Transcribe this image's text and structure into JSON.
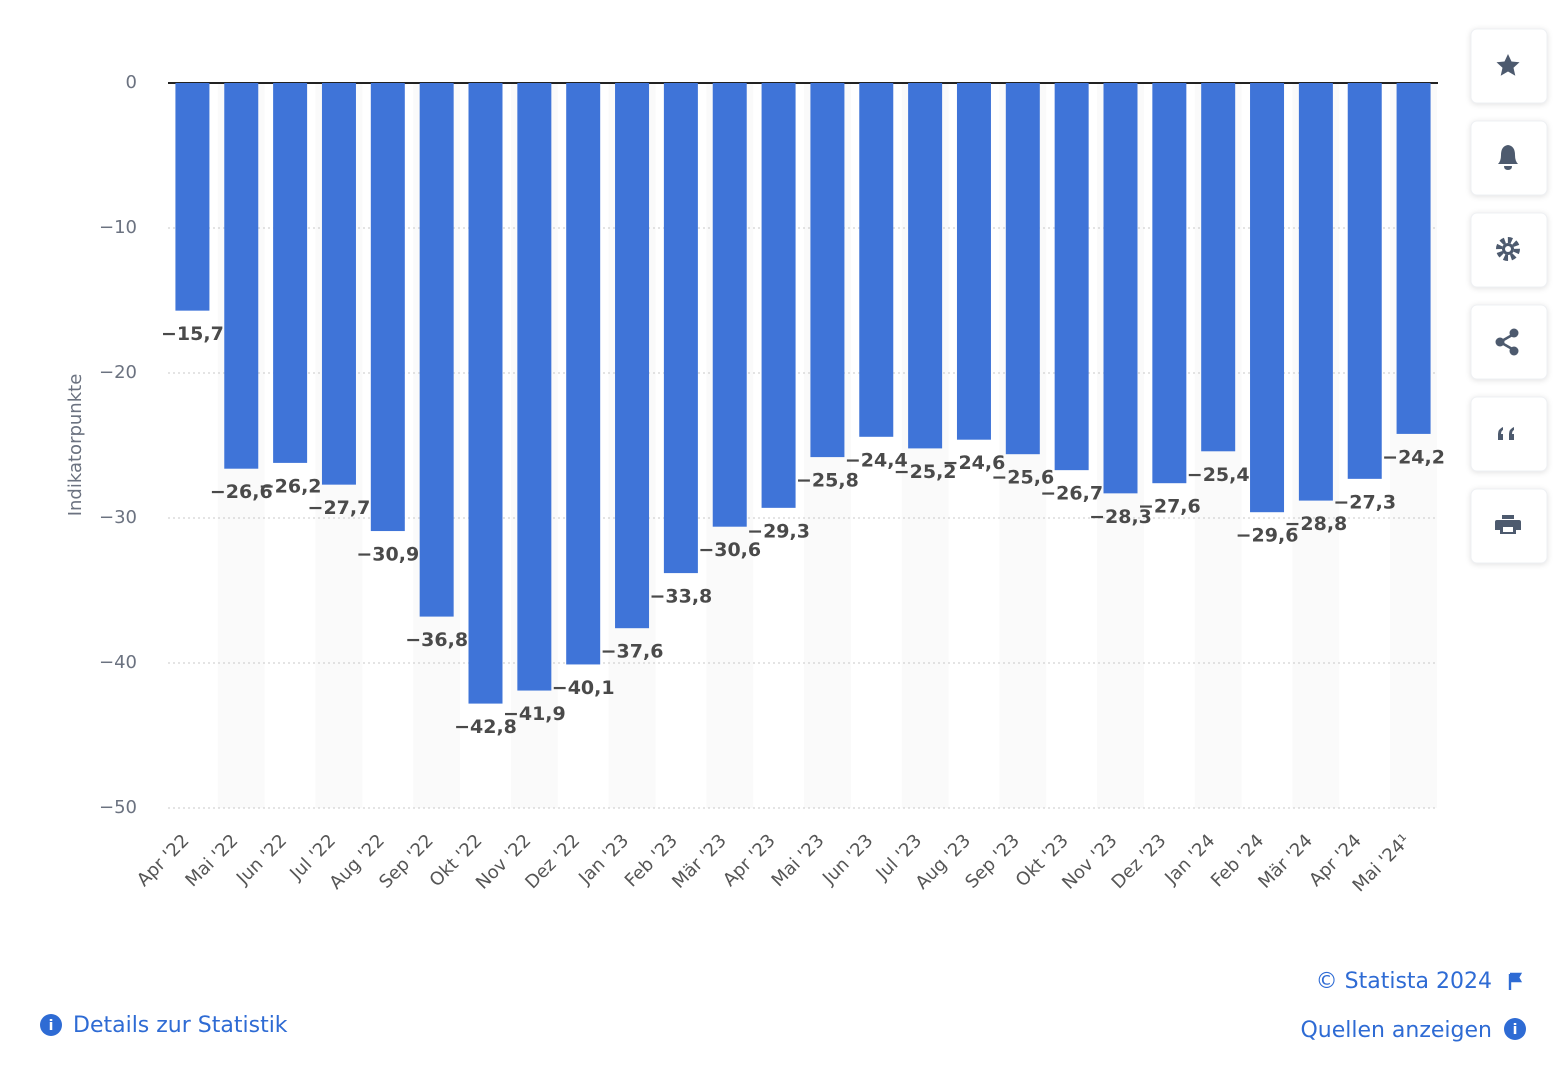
{
  "chart_data": {
    "type": "bar",
    "y_label": "Indikatorpunkte",
    "categories": [
      "Apr '22",
      "Mai '22",
      "Jun '22",
      "Jul '22",
      "Aug '22",
      "Sep '22",
      "Okt '22",
      "Nov '22",
      "Dez '22",
      "Jan '23",
      "Feb '23",
      "Mär '23",
      "Apr '23",
      "Mai '23",
      "Jun '23",
      "Jul '23",
      "Aug '23",
      "Sep '23",
      "Okt '23",
      "Nov '23",
      "Dez '23",
      "Jan '24",
      "Feb '24",
      "Mär '24",
      "Apr '24",
      "Mai '24¹"
    ],
    "values": [
      -15.7,
      -26.6,
      -26.2,
      -27.7,
      -30.9,
      -36.8,
      -42.8,
      -41.9,
      -40.1,
      -37.6,
      -33.8,
      -30.6,
      -29.3,
      -25.8,
      -24.4,
      -25.2,
      -24.6,
      -25.6,
      -26.7,
      -28.3,
      -27.6,
      -25.4,
      -29.6,
      -28.8,
      -27.3,
      -24.2
    ],
    "value_labels": [
      "−15,7",
      "−26,6",
      "−26,2",
      "−27,7",
      "−30,9",
      "−36,8",
      "−42,8",
      "−41,9",
      "−40,1",
      "−37,6",
      "−33,8",
      "−30,6",
      "−29,3",
      "−25,8",
      "−24,4",
      "−25,2",
      "−24,6",
      "−25,6",
      "−26,7",
      "−28,3",
      "−27,6",
      "−25,4",
      "−29,6",
      "−28,8",
      "−27,3",
      "−24,2"
    ],
    "color": "#3f74d8",
    "ylim": [
      -50,
      0
    ],
    "yticks": [
      0,
      {
        "value": -10,
        "label": "−10"
      },
      {
        "value": -20,
        "label": "−20"
      },
      {
        "value": -30,
        "label": "−30"
      },
      {
        "value": -40,
        "label": "−40"
      },
      {
        "value": -50,
        "label": "−50"
      }
    ],
    "grid": true
  },
  "footer": {
    "copyright": "© Statista 2024",
    "sources": "Quellen anzeigen",
    "details": "Details zur Statistik"
  }
}
